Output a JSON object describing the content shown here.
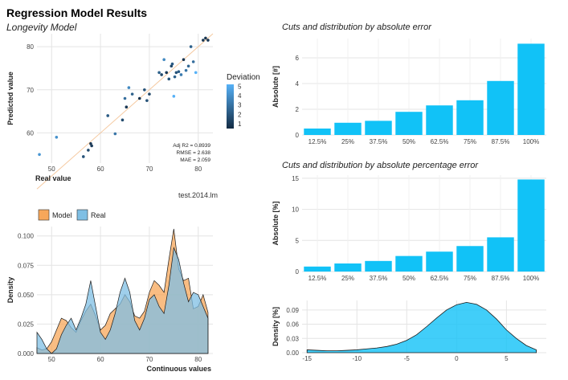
{
  "title": "Regression Model Results",
  "subtitle": "Longevity Model",
  "chart_data": [
    {
      "id": "scatter",
      "type": "scatter",
      "xlabel": "Real value",
      "ylabel": "Predicted value",
      "xlim": [
        47,
        83
      ],
      "ylim": [
        53,
        83
      ],
      "xticks": [
        50,
        60,
        70,
        80
      ],
      "yticks": [
        60,
        70,
        80
      ],
      "legend_title": "Deviation",
      "legend_ticks": [
        1,
        2,
        3,
        4,
        5
      ],
      "color_low": "#132b43",
      "color_high": "#56b1f7",
      "fit_line_color": "#f5c9a0",
      "stats": [
        "Adj R2 =  0.8939",
        "RMSE = 2.638",
        "MAE = 2.059"
      ],
      "caption": "test.2014.lm",
      "points": [
        {
          "x": 47.5,
          "y": 55.0,
          "d": 4.0
        },
        {
          "x": 51.0,
          "y": 59.0,
          "d": 3.8
        },
        {
          "x": 56.5,
          "y": 54.5,
          "d": 1.5
        },
        {
          "x": 57.5,
          "y": 56.0,
          "d": 1.2
        },
        {
          "x": 58.0,
          "y": 57.5,
          "d": 0.5
        },
        {
          "x": 58.2,
          "y": 57.0,
          "d": 0.6
        },
        {
          "x": 61.5,
          "y": 64.0,
          "d": 1.8
        },
        {
          "x": 63.0,
          "y": 59.8,
          "d": 2.8
        },
        {
          "x": 64.5,
          "y": 63.0,
          "d": 1.2
        },
        {
          "x": 65.0,
          "y": 68.0,
          "d": 2.5
        },
        {
          "x": 65.3,
          "y": 66.0,
          "d": 0.5
        },
        {
          "x": 65.8,
          "y": 70.5,
          "d": 3.5
        },
        {
          "x": 66.5,
          "y": 69.0,
          "d": 2.0
        },
        {
          "x": 68.0,
          "y": 68.0,
          "d": 0.3
        },
        {
          "x": 69.0,
          "y": 70.0,
          "d": 1.5
        },
        {
          "x": 69.5,
          "y": 67.5,
          "d": 1.5
        },
        {
          "x": 70.0,
          "y": 69.0,
          "d": 1.0
        },
        {
          "x": 72.0,
          "y": 74.0,
          "d": 2.0
        },
        {
          "x": 72.5,
          "y": 73.5,
          "d": 1.0
        },
        {
          "x": 73.0,
          "y": 77.0,
          "d": 3.5
        },
        {
          "x": 73.5,
          "y": 74.0,
          "d": 0.5
        },
        {
          "x": 74.0,
          "y": 72.5,
          "d": 1.5
        },
        {
          "x": 74.5,
          "y": 75.5,
          "d": 1.0
        },
        {
          "x": 74.7,
          "y": 76.0,
          "d": 1.8
        },
        {
          "x": 75.0,
          "y": 68.5,
          "d": 5.0
        },
        {
          "x": 75.2,
          "y": 73.0,
          "d": 2.0
        },
        {
          "x": 75.5,
          "y": 74.0,
          "d": 1.5
        },
        {
          "x": 76.0,
          "y": 74.2,
          "d": 1.8
        },
        {
          "x": 76.5,
          "y": 73.5,
          "d": 3.0
        },
        {
          "x": 77.0,
          "y": 77.0,
          "d": 0.3
        },
        {
          "x": 77.5,
          "y": 74.5,
          "d": 2.8
        },
        {
          "x": 78.0,
          "y": 75.5,
          "d": 2.2
        },
        {
          "x": 78.5,
          "y": 80.0,
          "d": 2.0
        },
        {
          "x": 79.0,
          "y": 76.5,
          "d": 2.5
        },
        {
          "x": 79.5,
          "y": 74.0,
          "d": 5.0
        },
        {
          "x": 81.0,
          "y": 81.5,
          "d": 0.5
        },
        {
          "x": 81.5,
          "y": 82.0,
          "d": 0.4
        },
        {
          "x": 82.0,
          "y": 81.5,
          "d": 0.5
        }
      ]
    },
    {
      "id": "bar_abs",
      "type": "bar",
      "title": "Cuts and distribution by absolute error",
      "ylabel": "Absolute [#]",
      "ylim": [
        0,
        7.5
      ],
      "yticks": [
        0,
        2,
        4,
        6
      ],
      "color": "#11c2f7",
      "categories": [
        "12.5%",
        "25%",
        "37.5%",
        "50%",
        "62.5%",
        "75%",
        "87.5%",
        "100%"
      ],
      "values": [
        0.5,
        0.95,
        1.1,
        1.8,
        2.3,
        2.7,
        4.2,
        7.1
      ]
    },
    {
      "id": "bar_pct",
      "type": "bar",
      "title": "Cuts and distribution by absolute percentage error",
      "ylabel": "Absolute [%]",
      "ylim": [
        0,
        15.5
      ],
      "yticks": [
        0,
        5,
        10,
        15
      ],
      "color": "#11c2f7",
      "categories": [
        "12.5%",
        "25%",
        "37.5%",
        "50%",
        "62.5%",
        "75%",
        "87.5%",
        "100%"
      ],
      "values": [
        0.8,
        1.3,
        1.7,
        2.5,
        3.2,
        4.1,
        5.5,
        14.8
      ]
    },
    {
      "id": "density_err",
      "type": "area",
      "ylabel": "Density [%]",
      "xlim": [
        -15.5,
        9
      ],
      "ylim": [
        0,
        0.11
      ],
      "xticks": [
        -15,
        -10,
        -5,
        0,
        5
      ],
      "yticks": [
        0.0,
        0.03,
        0.06,
        0.09
      ],
      "ytick_labels": [
        "0.00",
        "0.03",
        "0.06",
        "0.09"
      ],
      "color": "#11c2f7",
      "x": [
        -15,
        -14,
        -13,
        -12,
        -11,
        -10,
        -9,
        -8,
        -7,
        -6,
        -5,
        -4,
        -3,
        -2,
        -1,
        0,
        1,
        2,
        3,
        4,
        5,
        6,
        7,
        8
      ],
      "y": [
        0.006,
        0.005,
        0.004,
        0.004,
        0.005,
        0.006,
        0.008,
        0.01,
        0.013,
        0.018,
        0.026,
        0.038,
        0.055,
        0.073,
        0.09,
        0.101,
        0.106,
        0.102,
        0.09,
        0.071,
        0.048,
        0.03,
        0.015,
        0.006
      ]
    },
    {
      "id": "density_cmp",
      "type": "area",
      "xlabel": "Continuous values",
      "ylabel": "Density",
      "xlim": [
        47,
        83
      ],
      "ylim": [
        0,
        0.108
      ],
      "xticks": [
        50,
        60,
        70,
        80
      ],
      "yticks": [
        0.0,
        0.025,
        0.05,
        0.075,
        0.1
      ],
      "ytick_labels": [
        "0.000",
        "0.025",
        "0.050",
        "0.075",
        "0.100"
      ],
      "series": [
        {
          "name": "Model",
          "color": "#f7a75a",
          "x": [
            47,
            48,
            49,
            50,
            51,
            52,
            53,
            54,
            55,
            56,
            57,
            58,
            59,
            60,
            61,
            62,
            63,
            64,
            65,
            66,
            67,
            68,
            69,
            70,
            71,
            72,
            73,
            74,
            75,
            76,
            77,
            78,
            79,
            80,
            81,
            82
          ],
          "y": [
            0.005,
            0.003,
            0.004,
            0.01,
            0.02,
            0.03,
            0.028,
            0.022,
            0.018,
            0.028,
            0.036,
            0.042,
            0.032,
            0.02,
            0.024,
            0.034,
            0.038,
            0.042,
            0.05,
            0.044,
            0.032,
            0.03,
            0.036,
            0.052,
            0.062,
            0.058,
            0.052,
            0.08,
            0.106,
            0.072,
            0.062,
            0.064,
            0.038,
            0.04,
            0.05,
            0.035
          ]
        },
        {
          "name": "Real",
          "color": "#7fbfe4",
          "x": [
            47,
            48,
            49,
            50,
            51,
            52,
            53,
            54,
            55,
            56,
            57,
            58,
            59,
            60,
            61,
            62,
            63,
            64,
            65,
            66,
            67,
            68,
            69,
            70,
            71,
            72,
            73,
            74,
            75,
            76,
            77,
            78,
            79,
            80,
            81,
            82
          ],
          "y": [
            0.018,
            0.012,
            0.004,
            0.0,
            0.004,
            0.016,
            0.024,
            0.03,
            0.02,
            0.03,
            0.042,
            0.062,
            0.04,
            0.018,
            0.012,
            0.02,
            0.034,
            0.052,
            0.064,
            0.052,
            0.028,
            0.02,
            0.03,
            0.046,
            0.05,
            0.04,
            0.034,
            0.058,
            0.09,
            0.08,
            0.06,
            0.044,
            0.052,
            0.05,
            0.04,
            0.03
          ]
        }
      ]
    }
  ]
}
